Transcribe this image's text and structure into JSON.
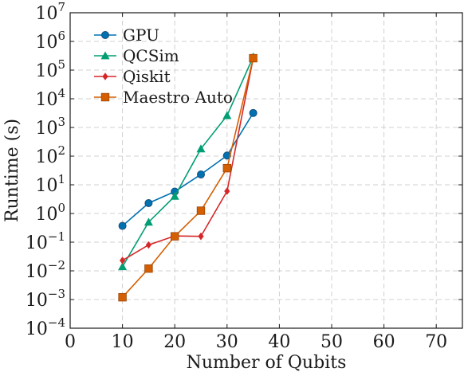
{
  "chart_data": {
    "type": "line",
    "title": "",
    "xlabel": "Number of Qubits",
    "ylabel": "Runtime (s)",
    "x_scale": "linear",
    "y_scale": "log",
    "xlim": [
      0,
      75
    ],
    "ylim": [
      0.0001,
      10000000
    ],
    "x_ticks": [
      0,
      10,
      20,
      30,
      40,
      50,
      60,
      70
    ],
    "x_tick_labels": [
      "0",
      "10",
      "20",
      "30",
      "40",
      "50",
      "60",
      "70"
    ],
    "y_ticks": [
      0.0001,
      0.001,
      0.01,
      0.1,
      1,
      10,
      100,
      1000,
      10000,
      100000,
      1000000,
      10000000
    ],
    "y_tick_labels": [
      {
        "base": "10",
        "exp": "−4"
      },
      {
        "base": "10",
        "exp": "−3"
      },
      {
        "base": "10",
        "exp": "−2"
      },
      {
        "base": "10",
        "exp": "−1"
      },
      {
        "base": "10",
        "exp": "0"
      },
      {
        "base": "10",
        "exp": "1"
      },
      {
        "base": "10",
        "exp": "2"
      },
      {
        "base": "10",
        "exp": "3"
      },
      {
        "base": "10",
        "exp": "4"
      },
      {
        "base": "10",
        "exp": "5"
      },
      {
        "base": "10",
        "exp": "6"
      },
      {
        "base": "10",
        "exp": "7"
      }
    ],
    "grid": true,
    "legend_position": "top-left",
    "series": [
      {
        "name": "GPU",
        "color": "#0072b2",
        "marker": "circle",
        "x": [
          10,
          15,
          20,
          25,
          30,
          35
        ],
        "y": [
          0.37,
          2.3,
          5.8,
          23,
          105,
          3200
        ]
      },
      {
        "name": "QCSim",
        "color": "#009e73",
        "marker": "triangle",
        "x": [
          10,
          15,
          20,
          25,
          30,
          35
        ],
        "y": [
          0.014,
          0.5,
          4.0,
          180,
          2600,
          290000
        ]
      },
      {
        "name": "Qiskit",
        "color": "#d62728",
        "marker": "diamond",
        "x": [
          10,
          15,
          20,
          25,
          30,
          35
        ],
        "y": [
          0.023,
          0.08,
          0.165,
          0.16,
          6.0,
          260000
        ]
      },
      {
        "name": "Maestro Auto",
        "color": "#d55e00",
        "marker": "square",
        "x": [
          10,
          15,
          20,
          25,
          30,
          35
        ],
        "y": [
          0.0012,
          0.012,
          0.16,
          1.25,
          38,
          260000
        ]
      }
    ]
  }
}
